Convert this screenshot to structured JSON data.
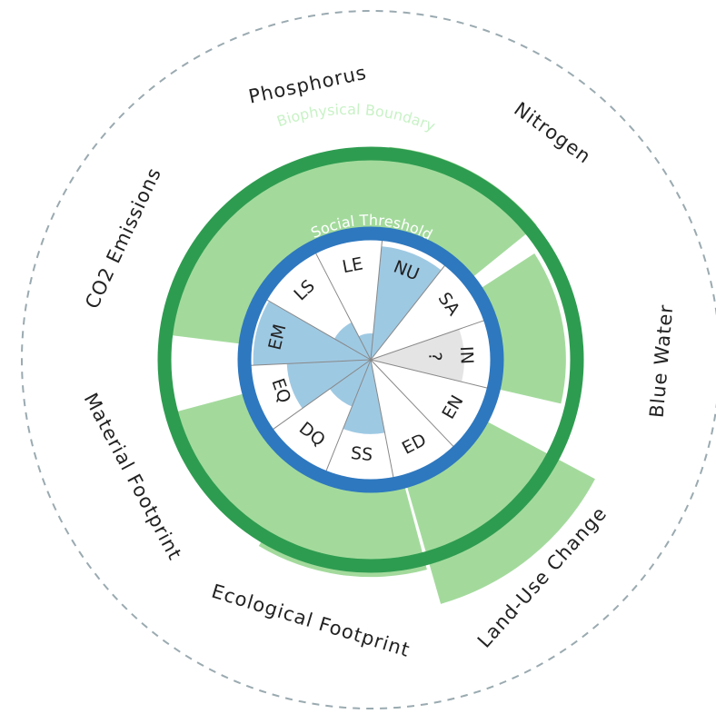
{
  "colors": {
    "outer_dashed": "#9aaab0",
    "biophysical_ring": "#2e9c50",
    "biophysical_label": "#c8f2c6",
    "biophysical_wedges": "#a3da9c",
    "social_ring": "#2e78bf",
    "social_label": "#ffffff",
    "social_wedges": "#9ec9e3",
    "unknown_wedge": "#e4e4e4",
    "spoke": "#888888"
  },
  "rings": {
    "biophysical_boundary": "Biophysical Boundary",
    "social_threshold": "Social Threshold"
  },
  "biophysical_indicators": [
    {
      "key": "co2",
      "label": "CO2 Emissions",
      "center_deg": -60,
      "value_ratio": 1.0
    },
    {
      "key": "phosphorus",
      "label": "Phosphorus",
      "center_deg": -17,
      "value_ratio": 0.92
    },
    {
      "key": "nitrogen",
      "label": "Nitrogen",
      "center_deg": 28,
      "value_ratio": 1.1
    },
    {
      "key": "blue_water",
      "label": "Blue Water",
      "center_deg": 80,
      "value_ratio": 0.85
    },
    {
      "key": "land_use",
      "label": "Land-Use Change",
      "center_deg": 141,
      "value_ratio": 1.65
    },
    {
      "key": "ecological",
      "label": "Ecological Footprint",
      "center_deg": 188,
      "value_ratio": 1.15
    },
    {
      "key": "material",
      "label": "Material Footprint",
      "center_deg": 232,
      "value_ratio": 1.05
    }
  ],
  "social_indicators": [
    {
      "key": "ls",
      "label": "LS",
      "value_ratio": 0.35
    },
    {
      "key": "le",
      "label": "LE",
      "value_ratio": 0.22
    },
    {
      "key": "nu",
      "label": "NU",
      "value_ratio": 0.95
    },
    {
      "key": "sa",
      "label": "SA",
      "value_ratio": 0.0
    },
    {
      "key": "in",
      "label": "IN",
      "value_ratio": 0.78,
      "unknown": true,
      "note": "?"
    },
    {
      "key": "en",
      "label": "EN",
      "value_ratio": 0.0
    },
    {
      "key": "ed",
      "label": "ED",
      "value_ratio": 0.0
    },
    {
      "key": "ss",
      "label": "SS",
      "value_ratio": 0.62
    },
    {
      "key": "dq",
      "label": "DQ",
      "value_ratio": 0.42
    },
    {
      "key": "eq",
      "label": "EQ",
      "value_ratio": 0.7
    },
    {
      "key": "em",
      "label": "EM",
      "value_ratio": 0.98
    }
  ]
}
